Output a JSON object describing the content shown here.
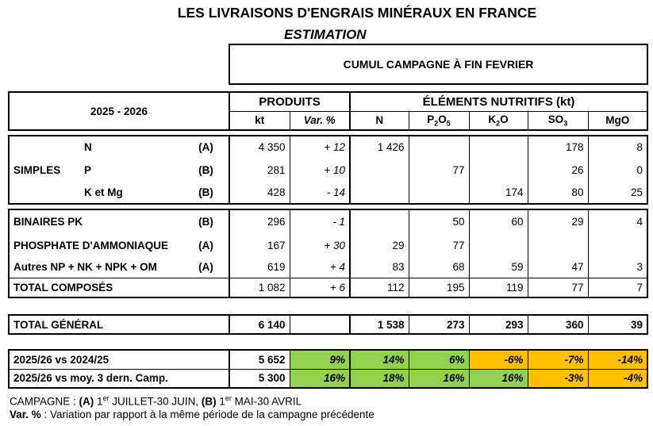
{
  "title": "LES LIVRAISONS D'ENGRAIS MINÉRAUX EN FRANCE",
  "subtitle": "ESTIMATION",
  "period_header": "CUMUL CAMPAGNE À FIN FEVRIER",
  "season": "2025 - 2026",
  "headers": {
    "produits": "PRODUITS",
    "elements": "ÉLÉMENTS NUTRITIFS (kt)",
    "kt": "kt",
    "var": "Var. %",
    "n": "N",
    "p_base": "P",
    "p_sub1": "2",
    "p_mid": "O",
    "p_sub2": "5",
    "k_base": "K",
    "k_sub": "2",
    "k_end": "O",
    "so_base": "SO",
    "so_sub": "3",
    "mgo": "MgO"
  },
  "simples": {
    "group_label": "SIMPLES",
    "rows": [
      {
        "name": "N",
        "code": "(A)",
        "kt": "4 350",
        "var": "+ 12",
        "n": "1 426",
        "p": "",
        "k": "",
        "so": "178",
        "mg": "8"
      },
      {
        "name": "P",
        "code": "(B)",
        "kt": "281",
        "var": "+ 10",
        "n": "",
        "p": "77",
        "k": "",
        "so": "26",
        "mg": "0"
      },
      {
        "name": "K et Mg",
        "code": "(B)",
        "kt": "428",
        "var": "- 14",
        "n": "",
        "p": "",
        "k": "174",
        "so": "80",
        "mg": "25"
      }
    ]
  },
  "composes": {
    "rows": [
      {
        "name": "BINAIRES PK",
        "code": "(B)",
        "kt": "296",
        "var": "- 1",
        "n": "",
        "p": "50",
        "k": "60",
        "so": "29",
        "mg": "4"
      },
      {
        "name": "PHOSPHATE D'AMMONIAQUE",
        "code": "(A)",
        "kt": "167",
        "var": "+ 30",
        "n": "29",
        "p": "77",
        "k": "",
        "so": "",
        "mg": ""
      },
      {
        "name": "Autres NP + NK + NPK + OM",
        "code": "(A)",
        "kt": "619",
        "var": "+ 4",
        "n": "83",
        "p": "68",
        "k": "59",
        "so": "47",
        "mg": "3"
      }
    ],
    "total": {
      "name": "TOTAL COMPOSÉS",
      "kt": "1 082",
      "var": "+ 6",
      "n": "112",
      "p": "195",
      "k": "119",
      "so": "77",
      "mg": "7"
    }
  },
  "total_general": {
    "name": "TOTAL GÉNÉRAL",
    "kt": "6 140",
    "var": "",
    "n": "1 538",
    "p": "273",
    "k": "293",
    "so": "360",
    "mg": "39"
  },
  "comparisons": [
    {
      "name": "2025/26 vs 2024/25",
      "kt": "5 652",
      "var": "9%",
      "n": "14%",
      "p": "6%",
      "k": "-6%",
      "so": "-7%",
      "mg": "-14%"
    },
    {
      "name": "2025/26 vs moy. 3 dern. Camp.",
      "kt": "5 300",
      "var": "16%",
      "n": "18%",
      "p": "16%",
      "k": "16%",
      "so": "-3%",
      "mg": "-4%"
    }
  ],
  "footnotes": {
    "campagne_label": "CAMPAGNE : ",
    "a_code": "(A)",
    "a_sup": "er",
    "a_text_pre": " 1",
    "a_text": " JUILLET-30 JUIN, ",
    "b_code": "(B)",
    "b_text_pre": " 1",
    "b_sup": "er",
    "b_text": " MAI-30 AVRIL",
    "var_label": "Var. %",
    "var_text": " : Variation par rapport à la même période de la campagne précédente"
  },
  "colors": {
    "positive": "#92d050",
    "negative": "#ffc000"
  }
}
